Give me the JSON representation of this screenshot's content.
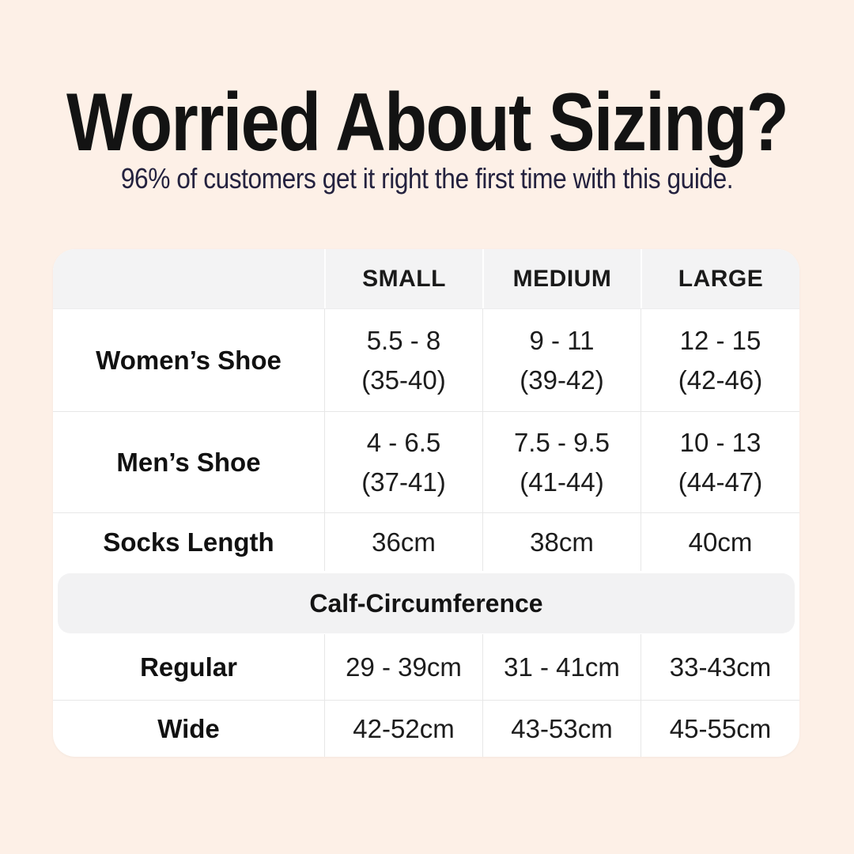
{
  "header": {
    "title": "Worried About Sizing?",
    "subtitle": "96% of customers get it right the first time with this guide."
  },
  "colors": {
    "page_background": "#fdf0e7",
    "table_background": "#ffffff",
    "header_row_background": "#f3f3f4",
    "section_band_background": "#f2f2f3",
    "divider": "#e7e7e7",
    "title_text": "#131313",
    "subtitle_text": "#24223f",
    "table_text": "#1c1c1c"
  },
  "size_chart": {
    "column_headers": [
      "",
      "SMALL",
      "MEDIUM",
      "LARGE"
    ],
    "rows": [
      {
        "label": "Women’s Shoe",
        "small": "5.5 - 8\n(35-40)",
        "medium": "9 - 11\n(39-42)",
        "large": "12 - 15\n(42-46)"
      },
      {
        "label": "Men’s Shoe",
        "small": "4 - 6.5\n(37-41)",
        "medium": "7.5 - 9.5\n(41-44)",
        "large": "10 - 13\n(44-47)"
      },
      {
        "label": "Socks Length",
        "small": "36cm",
        "medium": "38cm",
        "large": "40cm"
      }
    ],
    "section_header": "Calf-Circumference",
    "section_rows": [
      {
        "label": "Regular",
        "small": "29 - 39cm",
        "medium": "31 - 41cm",
        "large": "33-43cm"
      },
      {
        "label": "Wide",
        "small": "42-52cm",
        "medium": "43-53cm",
        "large": "45-55cm"
      }
    ]
  }
}
